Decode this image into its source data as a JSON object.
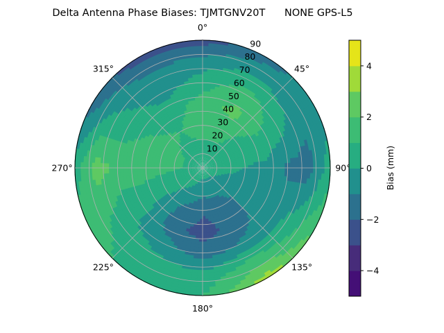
{
  "chart_data": {
    "type": "heatmap",
    "subtype": "polar-filled-contour",
    "title": "Delta Antenna Phase Biases: TJMTGNV20T      NONE GPS-L5",
    "angular_axis": {
      "direction": "clockwise",
      "zero_location": "top",
      "tick_labels": [
        "0°",
        "45°",
        "90°",
        "135°",
        "180°",
        "225°",
        "270°",
        "315°"
      ]
    },
    "radial_axis": {
      "range": [
        0,
        90
      ],
      "tick_labels": [
        "10",
        "20",
        "30",
        "40",
        "50",
        "60",
        "70",
        "80",
        "90"
      ]
    },
    "grid": true,
    "colorbar": {
      "label": "Bias (mm)",
      "colormap": "viridis",
      "levels": [
        -5,
        -4,
        -3,
        -2,
        -1,
        0,
        1,
        2,
        3,
        4,
        5
      ],
      "colors": [
        "#440f76",
        "#472c7a",
        "#3b518b",
        "#2c718e",
        "#21908d",
        "#27ad81",
        "#3dbc74",
        "#5ec962",
        "#a0da39",
        "#e5e419"
      ],
      "tick_labels": [
        "−4",
        "−2",
        "0",
        "2",
        "4"
      ],
      "ticks": [
        -4,
        -2,
        0,
        2,
        4
      ],
      "placement": "right"
    },
    "azimuth_deg": [
      0,
      30,
      60,
      90,
      120,
      150,
      180,
      210,
      240,
      270,
      300,
      330
    ],
    "zenith_deg": [
      0,
      15,
      30,
      45,
      60,
      75,
      90
    ],
    "bias_mm": [
      [
        0.5,
        0.5,
        0.5,
        0.5,
        0.5,
        0.5,
        0.5,
        0.5,
        0.5,
        0.5,
        0.5,
        0.5
      ],
      [
        0.8,
        0.8,
        0.5,
        0.3,
        -0.2,
        -0.5,
        -0.5,
        0.0,
        0.5,
        1.0,
        1.0,
        0.8
      ],
      [
        1.5,
        1.5,
        0.5,
        0.0,
        -0.5,
        -1.5,
        -1.8,
        -1.0,
        0.3,
        1.3,
        1.2,
        1.0
      ],
      [
        1.5,
        2.3,
        1.0,
        -0.3,
        -0.5,
        -1.5,
        -2.5,
        -1.5,
        0.5,
        1.5,
        1.0,
        0.5
      ],
      [
        0.5,
        1.5,
        0.5,
        -1.2,
        -0.5,
        -0.8,
        -1.5,
        -0.5,
        0.3,
        1.8,
        0.5,
        -0.5
      ],
      [
        -0.5,
        0.0,
        -0.5,
        -1.5,
        0.5,
        1.5,
        0.3,
        0.5,
        1.0,
        2.5,
        0.0,
        -1.0
      ],
      [
        -2.5,
        -1.5,
        -0.5,
        0.5,
        2.0,
        3.5,
        1.0,
        0.5,
        1.5,
        0.5,
        -1.5,
        -2.5
      ]
    ]
  }
}
